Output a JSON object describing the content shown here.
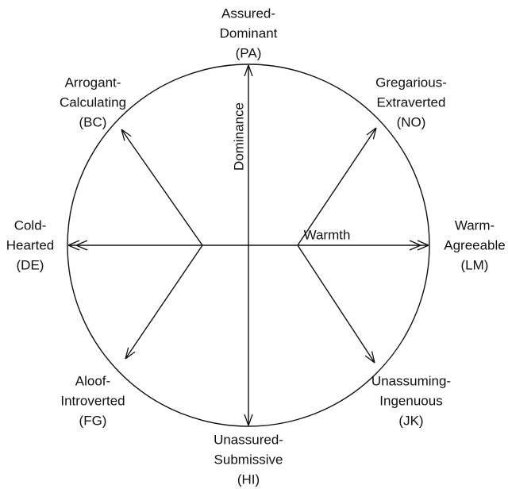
{
  "axes": {
    "vertical": "Dominance",
    "horizontal": "Warmth"
  },
  "octants": [
    {
      "lines": [
        "Assured-",
        "Dominant",
        "(PA)"
      ]
    },
    {
      "lines": [
        "Gregarious-",
        "Extraverted",
        "(NO)"
      ]
    },
    {
      "lines": [
        "Warm-",
        "Agreeable",
        "(LM)"
      ]
    },
    {
      "lines": [
        "Unassuming-",
        "Ingenuous",
        "(JK)"
      ]
    },
    {
      "lines": [
        "Unassured-",
        "Submissive",
        "(HI)"
      ]
    },
    {
      "lines": [
        "Aloof-",
        "Introverted",
        "(FG)"
      ]
    },
    {
      "lines": [
        "Cold-",
        "Hearted",
        "(DE)"
      ]
    },
    {
      "lines": [
        "Arrogant-",
        "Calculating",
        "(BC)"
      ]
    }
  ]
}
